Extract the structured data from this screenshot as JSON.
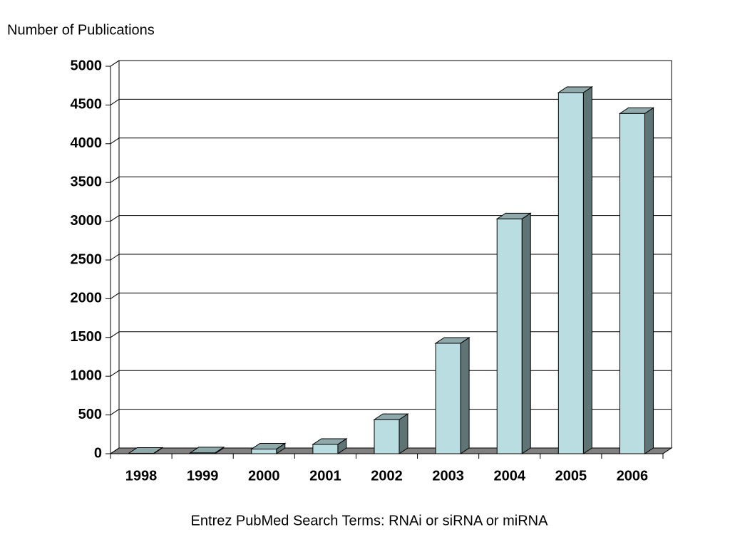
{
  "chart_data": {
    "type": "bar3d",
    "ylabel": "Number of Publications",
    "xlabel": "Entrez PubMed Search Terms: RNAi or siRNA or miRNA",
    "categories": [
      "1998",
      "1999",
      "2000",
      "2001",
      "2002",
      "2003",
      "2004",
      "2005",
      "2006"
    ],
    "values": [
      5,
      10,
      60,
      120,
      440,
      1425,
      3030,
      4660,
      4390
    ],
    "color": "#b9dde1",
    "ylim": [
      0,
      5000
    ],
    "yticks": [
      0,
      500,
      1000,
      1500,
      2000,
      2500,
      3000,
      3500,
      4000,
      4500,
      5000
    ],
    "grid": true
  }
}
